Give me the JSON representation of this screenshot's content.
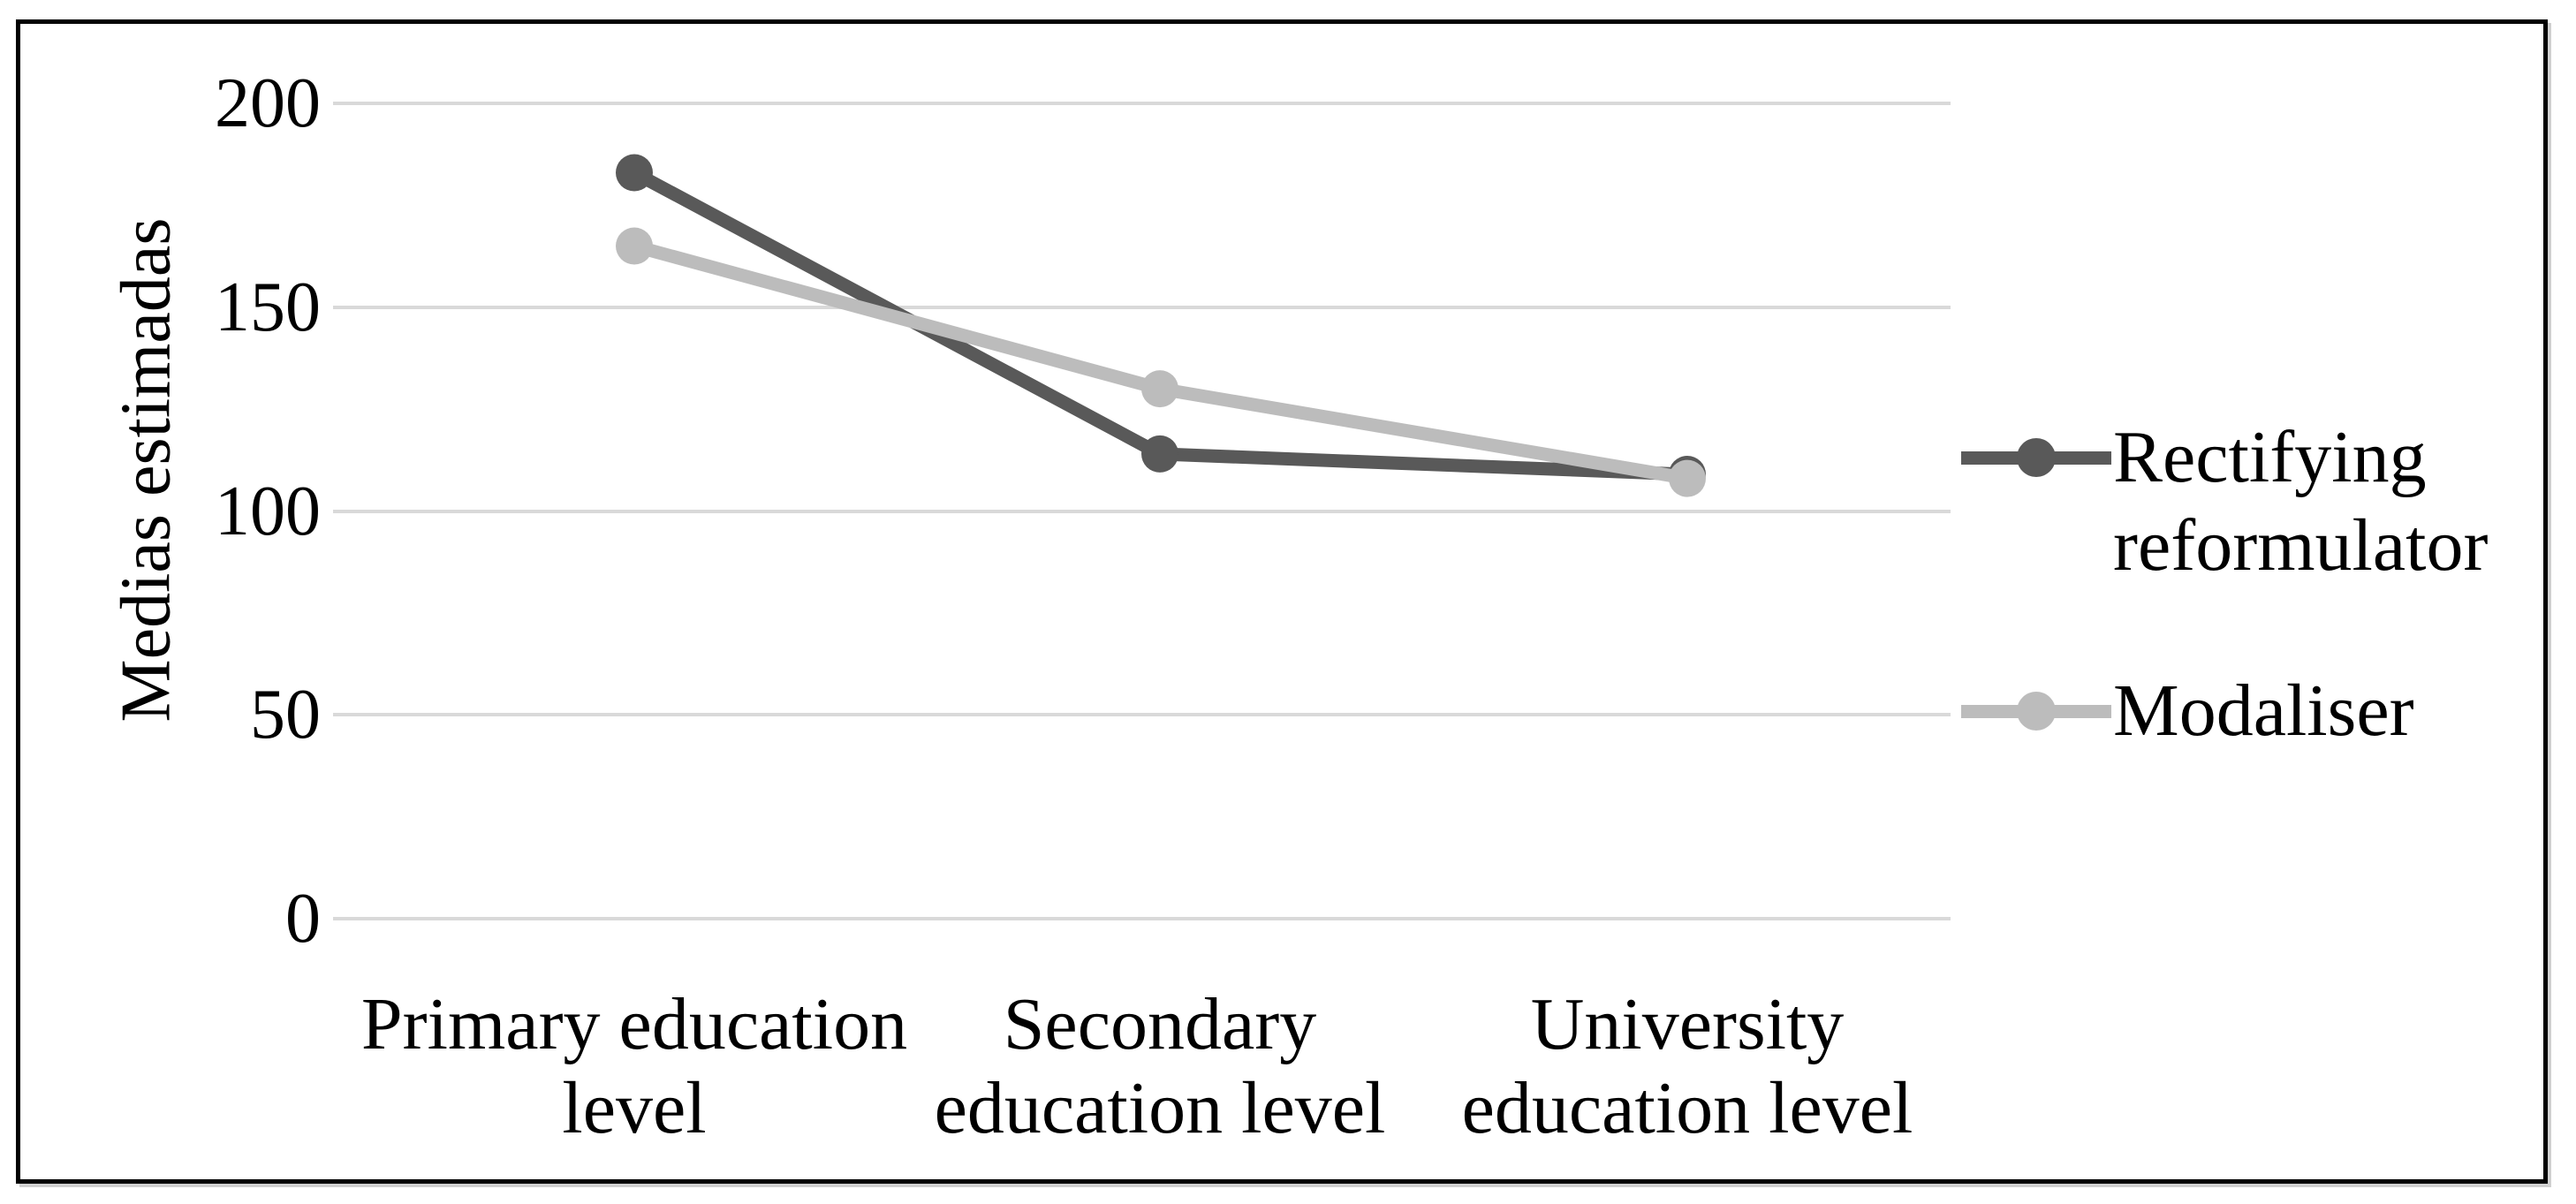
{
  "figure": {
    "background": "#ffffff",
    "border_color": "#000000"
  },
  "chart_data": {
    "type": "line",
    "title": "",
    "xlabel": "",
    "ylabel": "Medias estimadas",
    "categories": [
      "Primary education level",
      "Secondary education level",
      "University education level"
    ],
    "category_label_lines": [
      [
        "Primary education",
        "level"
      ],
      [
        "Secondary",
        "education level"
      ],
      [
        "University",
        "education level"
      ]
    ],
    "series": [
      {
        "name": "Rectifying reformulator",
        "values": [
          183,
          114,
          109
        ],
        "color": "#595959",
        "marker": "circle"
      },
      {
        "name": "Modaliser",
        "values": [
          165,
          130,
          108
        ],
        "color": "#bcbcbc",
        "marker": "circle"
      }
    ],
    "ylim": [
      0,
      200
    ],
    "yticks": [
      0,
      50,
      100,
      150,
      200
    ],
    "grid": "horizontal",
    "gridline_color": "#d9d9d9",
    "legend_position": "right"
  }
}
